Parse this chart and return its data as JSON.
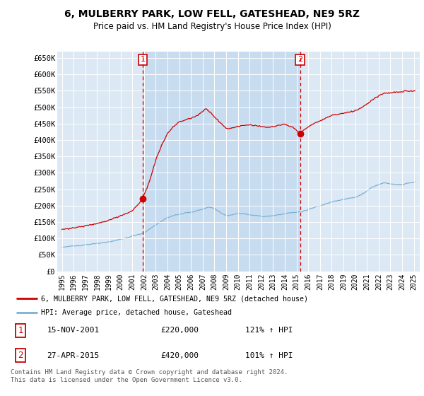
{
  "title": "6, MULBERRY PARK, LOW FELL, GATESHEAD, NE9 5RZ",
  "subtitle": "Price paid vs. HM Land Registry's House Price Index (HPI)",
  "background_color": "#dce9f5",
  "plot_bg_color": "#dce9f5",
  "ylim": [
    0,
    670000
  ],
  "yticks": [
    0,
    50000,
    100000,
    150000,
    200000,
    250000,
    300000,
    350000,
    400000,
    450000,
    500000,
    550000,
    600000,
    650000
  ],
  "ytick_labels": [
    "£0",
    "£50K",
    "£100K",
    "£150K",
    "£200K",
    "£250K",
    "£300K",
    "£350K",
    "£400K",
    "£450K",
    "£500K",
    "£550K",
    "£600K",
    "£650K"
  ],
  "legend_entry1": "6, MULBERRY PARK, LOW FELL, GATESHEAD, NE9 5RZ (detached house)",
  "legend_entry2": "HPI: Average price, detached house, Gateshead",
  "sale1_date": "15-NOV-2001",
  "sale1_price": 220000,
  "sale1_hpi": "121% ↑ HPI",
  "sale2_date": "27-APR-2015",
  "sale2_price": 420000,
  "sale2_hpi": "101% ↑ HPI",
  "footer1": "Contains HM Land Registry data © Crown copyright and database right 2024.",
  "footer2": "This data is licensed under the Open Government Licence v3.0.",
  "red_color": "#cc0000",
  "blue_color": "#7ab0d4",
  "shade_color": "#c5daf0",
  "sale1_x": 2001.88,
  "sale2_x": 2015.3
}
